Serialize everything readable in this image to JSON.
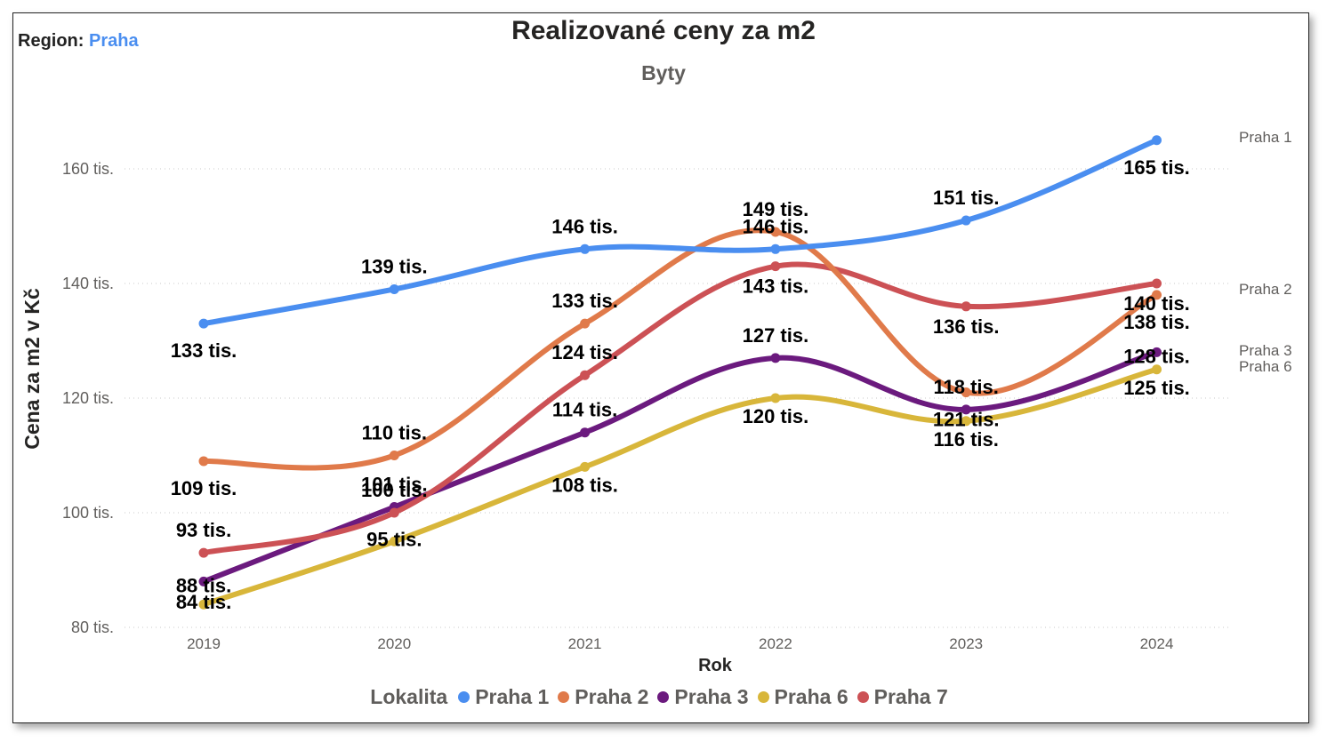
{
  "region": {
    "label": "Region:",
    "value": "Praha"
  },
  "chart_data": {
    "type": "line",
    "title": "Realizované ceny za m2",
    "subtitle": "Byty",
    "xlabel": "Rok",
    "ylabel": "Cena za m2 v Kč",
    "categories": [
      "2019",
      "2020",
      "2021",
      "2022",
      "2023",
      "2024"
    ],
    "yticks": [
      80000,
      100000,
      120000,
      140000,
      160000
    ],
    "ytick_labels": [
      "80 tis.",
      "100 tis.",
      "120 tis.",
      "140 tis.",
      "160 tis."
    ],
    "ylim": [
      80000,
      165000
    ],
    "grid": "horizontal dotted",
    "legend_title": "Lokalita",
    "legend_position": "bottom",
    "series": [
      {
        "name": "Praha 1",
        "color": "#4a8ef0",
        "values": [
          133000,
          139000,
          146000,
          146000,
          151000,
          165000
        ],
        "labels": [
          "133 tis.",
          "139 tis.",
          "146 tis.",
          "146 tis.",
          "151 tis.",
          "165 tis."
        ]
      },
      {
        "name": "Praha 2",
        "color": "#e07a4a",
        "values": [
          109000,
          110000,
          133000,
          149000,
          121000,
          138000
        ],
        "labels": [
          "109 tis.",
          "110 tis.",
          "133 tis.",
          "149 tis.",
          "121 tis.",
          "138 tis."
        ]
      },
      {
        "name": "Praha 3",
        "color": "#6b1a7e",
        "values": [
          88000,
          101000,
          114000,
          127000,
          118000,
          128000
        ],
        "labels": [
          "88 tis.",
          "101 tis.",
          "114 tis.",
          "127 tis.",
          "118 tis.",
          "128 tis."
        ]
      },
      {
        "name": "Praha 6",
        "color": "#d8b63a",
        "values": [
          84000,
          95000,
          108000,
          120000,
          116000,
          125000
        ],
        "labels": [
          "84 tis.",
          "95 tis.",
          "108 tis.",
          "120 tis.",
          "116 tis.",
          "125 tis."
        ]
      },
      {
        "name": "Praha 7",
        "color": "#cc5155",
        "values": [
          93000,
          100000,
          124000,
          143000,
          136000,
          140000
        ],
        "labels": [
          "93 tis.",
          "100 tis.",
          "124 tis.",
          "143 tis.",
          "136 tis.",
          "140 tis."
        ]
      }
    ],
    "end_labels": [
      "Praha 1",
      "Praha 2",
      "Praha 3",
      "Praha 6"
    ]
  }
}
